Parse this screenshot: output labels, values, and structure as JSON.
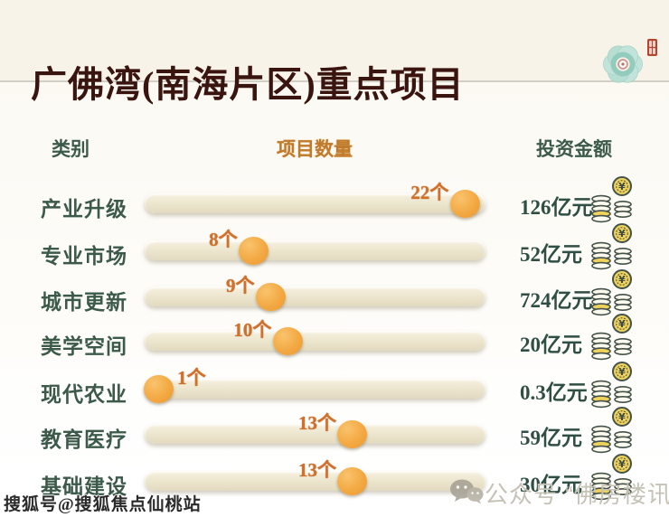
{
  "header": {
    "title": "广佛湾(南海片区)重点项目",
    "logo_icon": "flower-dish-logo",
    "seal_icon": "red-seal"
  },
  "table": {
    "columns": {
      "category": "类别",
      "count": "项目数量",
      "amount": "投资金额"
    },
    "rows": [
      {
        "category": "产业升级",
        "count_label": "22个",
        "amount_label": "126亿元",
        "marker_pct": 94
      },
      {
        "category": "专业市场",
        "count_label": "8个",
        "amount_label": "52亿元",
        "marker_pct": 32
      },
      {
        "category": "城市更新",
        "count_label": "9个",
        "amount_label": "724亿元",
        "marker_pct": 37
      },
      {
        "category": "美学空间",
        "count_label": "10个",
        "amount_label": "20亿元",
        "marker_pct": 42
      },
      {
        "category": "现代农业",
        "count_label": "1个",
        "amount_label": "0.3亿元",
        "marker_pct": 4
      },
      {
        "category": "教育医疗",
        "count_label": "13个",
        "amount_label": "59亿元",
        "marker_pct": 61
      },
      {
        "category": "基础建设",
        "count_label": "13个",
        "amount_label": "30亿元",
        "marker_pct": 61
      }
    ]
  },
  "footer": {
    "left_watermark": "搜狐号@搜狐焦点仙桃站",
    "right_watermark": "公众号 “佛房楼讯”",
    "wechat_icon": "wechat-logo"
  },
  "colors": {
    "title": "#3a140e",
    "category_green": "#3c5a49",
    "count_orange": "#d2702a",
    "header_orange": "#c07a2b",
    "amount_teal": "#2f4f45",
    "dot_orange": "#f3a943",
    "track_cream": "#ece5cd",
    "band_bg": "#f7f3e9",
    "coin_gold": "#efd25c"
  },
  "chart_data": {
    "type": "bar",
    "title": "广佛湾(南海片区)重点项目",
    "categories": [
      "产业升级",
      "专业市场",
      "城市更新",
      "美学空间",
      "现代农业",
      "教育医疗",
      "基础建设"
    ],
    "series": [
      {
        "name": "项目数量(个)",
        "values": [
          22,
          8,
          9,
          10,
          1,
          13,
          13
        ]
      },
      {
        "name": "投资金额(亿元)",
        "values": [
          126,
          52,
          724,
          20,
          0.3,
          59,
          30
        ]
      }
    ],
    "xlabel": "",
    "ylabel": "",
    "xlim": [
      0,
      23.5
    ],
    "legend_position": "none",
    "grid": false,
    "style_note": "horizontal slider tracks with orange dot markers; marker position encodes 项目数量",
    "marker_positions_pct": [
      94,
      32,
      37,
      42,
      4,
      61,
      61
    ]
  }
}
